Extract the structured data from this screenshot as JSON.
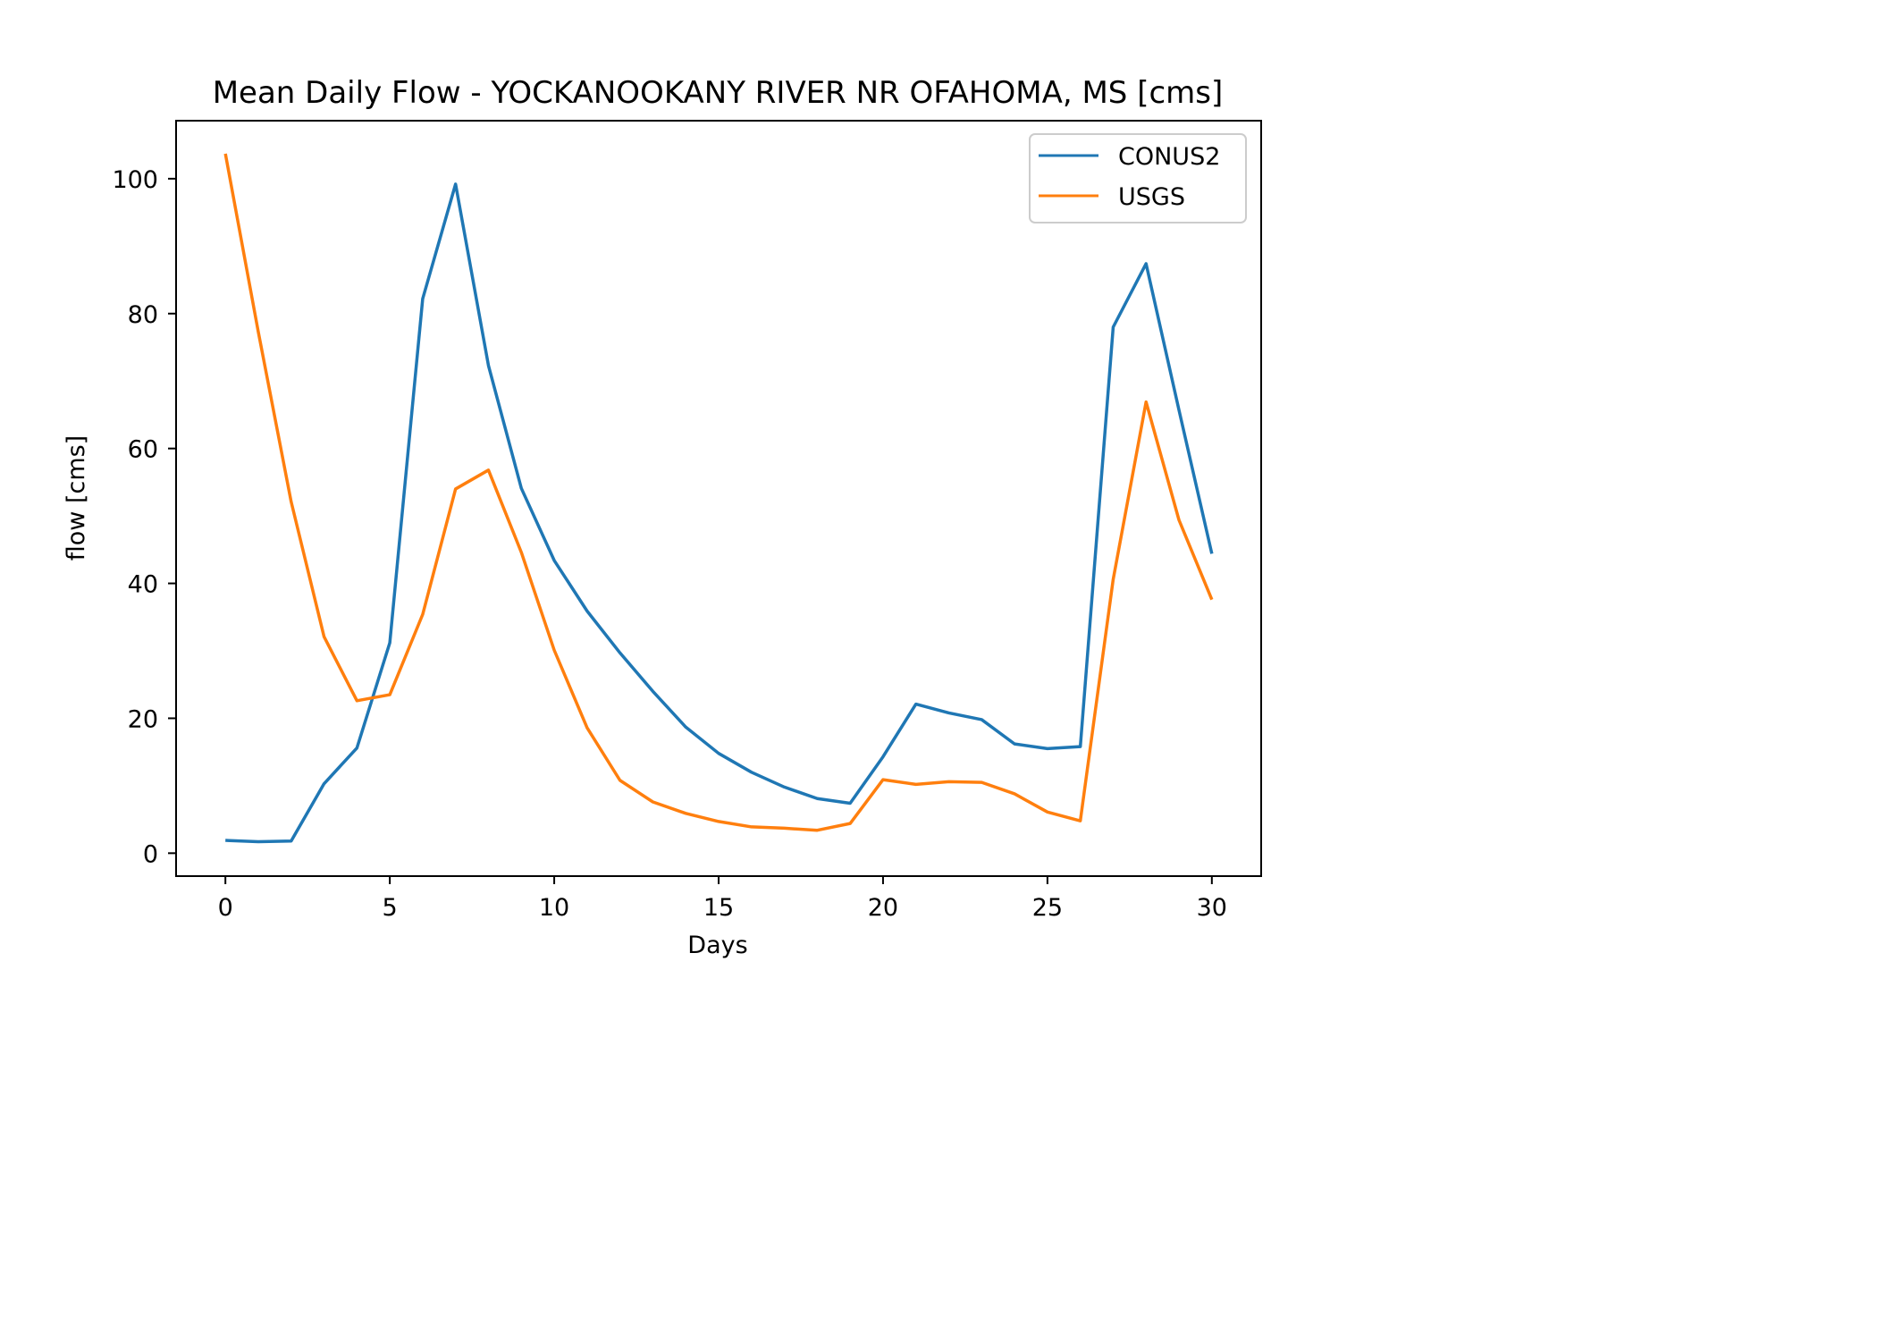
{
  "chart_data": {
    "type": "line",
    "title": "Mean Daily Flow - YOCKANOOKANY RIVER NR OFAHOMA, MS [cms]",
    "xlabel": "Days",
    "ylabel": "flow [cms]",
    "xlim": [
      -1.5,
      31.5
    ],
    "ylim": [
      -3.4,
      108.6
    ],
    "xticks": [
      0,
      5,
      10,
      15,
      20,
      25,
      30
    ],
    "yticks": [
      0,
      20,
      40,
      60,
      80,
      100
    ],
    "grid": false,
    "legend_position": "upper right",
    "x": [
      0,
      1,
      2,
      3,
      4,
      5,
      6,
      7,
      8,
      9,
      10,
      11,
      12,
      13,
      14,
      15,
      16,
      17,
      18,
      19,
      20,
      21,
      22,
      23,
      24,
      25,
      26,
      27,
      28,
      29,
      30
    ],
    "series": [
      {
        "name": "CONUS2",
        "color": "#1f77b4",
        "values": [
          1.9,
          1.7,
          1.8,
          10.3,
          15.6,
          31.2,
          82.2,
          99.2,
          72.3,
          54.1,
          43.4,
          35.9,
          29.7,
          24.0,
          18.7,
          14.8,
          12.0,
          9.8,
          8.1,
          7.4,
          14.3,
          22.1,
          20.8,
          19.8,
          16.2,
          15.5,
          15.8,
          78.0,
          87.4,
          65.7,
          44.4
        ]
      },
      {
        "name": "USGS",
        "color": "#ff7f0e",
        "values": [
          103.7,
          77.3,
          52.1,
          32.1,
          22.6,
          23.5,
          35.4,
          54.0,
          56.8,
          44.6,
          30.1,
          18.6,
          10.8,
          7.6,
          5.9,
          4.7,
          3.9,
          3.7,
          3.4,
          4.4,
          10.9,
          10.2,
          10.6,
          10.5,
          8.8,
          6.1,
          4.8,
          40.6,
          66.9,
          49.4,
          37.6
        ]
      }
    ]
  }
}
